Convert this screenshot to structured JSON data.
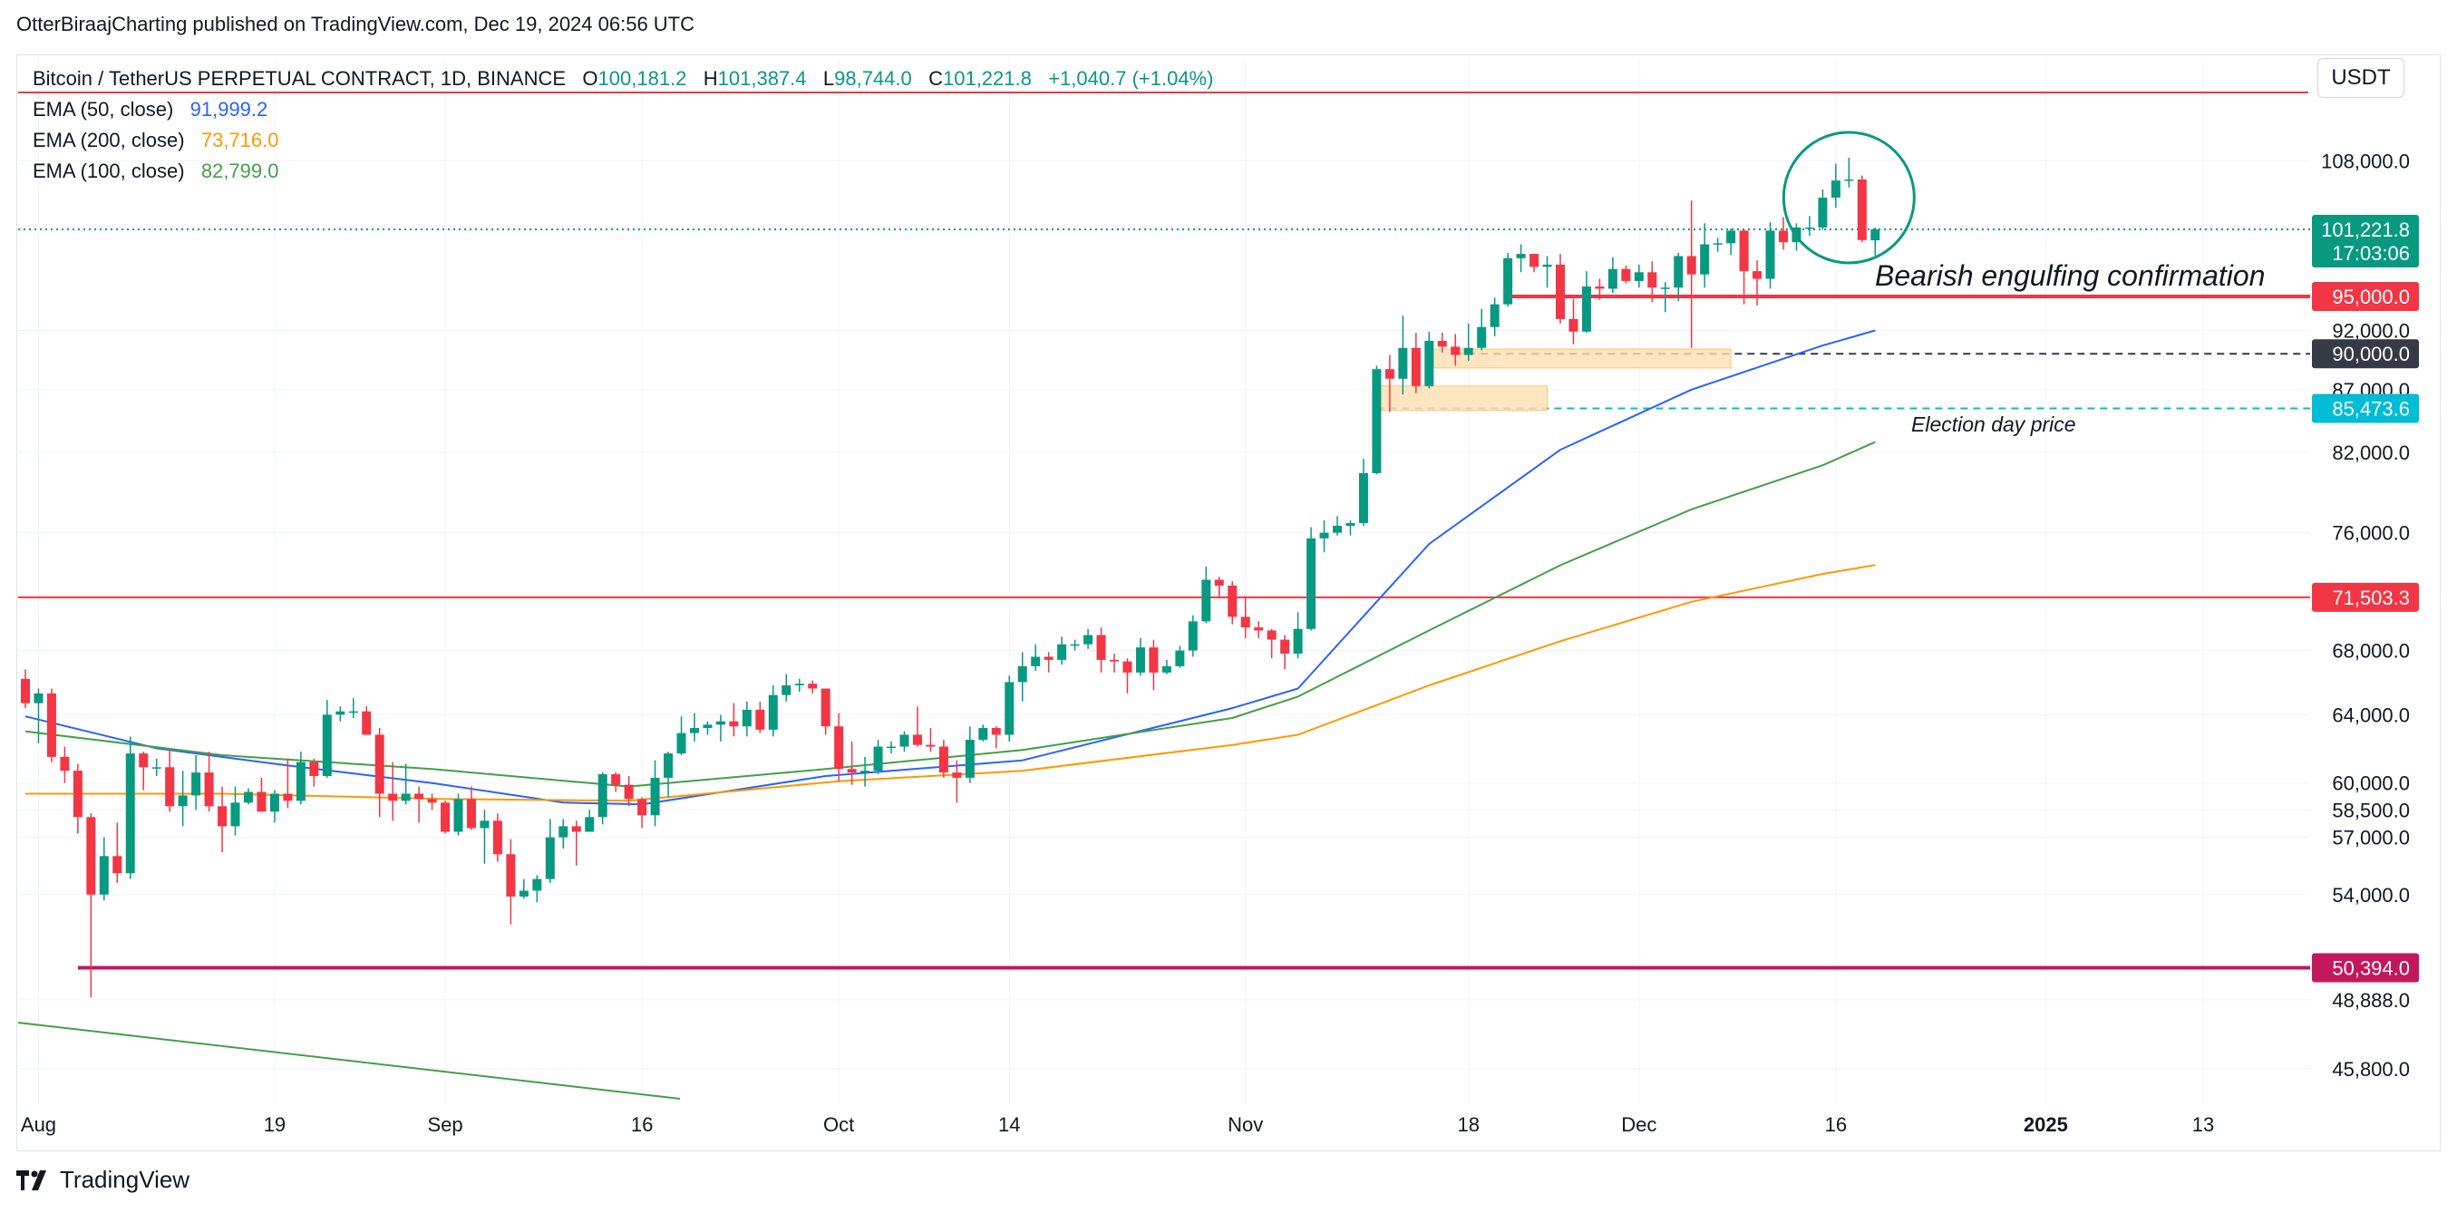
{
  "attribution": "OtterBiraajCharting published on TradingView.com, Dec 19, 2024 06:56 UTC",
  "legend": {
    "symbol": "Bitcoin / TetherUS PERPETUAL CONTRACT, 1D, BINANCE",
    "open_label": "O",
    "open": "100,181.2",
    "high_label": "H",
    "high": "101,387.4",
    "low_label": "L",
    "low": "98,744.0",
    "close_label": "C",
    "close": "101,221.8",
    "change": "+1,040.7 (+1.04%)",
    "ema50_label": "EMA (50, close)",
    "ema50_value": "91,999.2",
    "ema200_label": "EMA (200, close)",
    "ema200_value": "73,716.0",
    "ema100_label": "EMA (100, close)",
    "ema100_value": "82,799.0"
  },
  "currency": "USDT",
  "brand": "TradingView",
  "colors": {
    "up": "#089981",
    "down": "#f23645",
    "ema50": "#2962ff",
    "ema100": "#43a047",
    "ema200": "#ff9800",
    "grid": "#f0f3fa",
    "axis_text": "#131722"
  },
  "chart_data": {
    "type": "candlestick",
    "x_axis": {
      "ticks": [
        {
          "date": "2024-08-01",
          "label": "Aug"
        },
        {
          "date": "2024-08-19",
          "label": "19"
        },
        {
          "date": "2024-09-01",
          "label": "Sep"
        },
        {
          "date": "2024-09-16",
          "label": "16"
        },
        {
          "date": "2024-10-01",
          "label": "Oct"
        },
        {
          "date": "2024-10-14",
          "label": "14"
        },
        {
          "date": "2024-11-01",
          "label": "Nov"
        },
        {
          "date": "2024-11-18",
          "label": "18"
        },
        {
          "date": "2024-12-01",
          "label": "Dec"
        },
        {
          "date": "2024-12-16",
          "label": "16"
        },
        {
          "date": "2025-01-01",
          "label": "2025"
        },
        {
          "date": "2025-01-13",
          "label": "13"
        }
      ]
    },
    "y_axis": {
      "scale": "log",
      "range": [
        44300,
        119000
      ],
      "ticks": [
        45800,
        48888,
        54000,
        57000,
        58500,
        60000,
        64000,
        68000,
        76000,
        82000,
        87000,
        92000,
        108000
      ],
      "tick_labels": [
        "45,800.0",
        "48,888.0",
        "54,000.0",
        "57,000.0",
        "58,500.0",
        "60,000.0",
        "64,000.0",
        "68,000.0",
        "76,000.0",
        "82,000.0",
        "87,000.0",
        "92,000.0",
        "108,000.0"
      ]
    },
    "price_labels": [
      {
        "value": 101221.8,
        "label": "101,221.8",
        "sub": "17:03:06",
        "bg": "#089981"
      },
      {
        "value": 95000,
        "label": "95,000.0",
        "bg": "#f23645"
      },
      {
        "value": 90000,
        "label": "90,000.0",
        "bg": "#363a45"
      },
      {
        "value": 85473.6,
        "label": "85,473.6",
        "bg": "#00bcd4"
      },
      {
        "value": 71503.3,
        "label": "71,503.3",
        "bg": "#f23645"
      },
      {
        "value": 50394,
        "label": "50,394.0",
        "bg": "#c2185b"
      }
    ],
    "annotations": {
      "bearish_text": "Bearish engulfing confirmation",
      "election_text": "Election day price"
    },
    "candles": [
      [
        "2024-07-31",
        66200,
        66800,
        64400,
        64700
      ],
      [
        "2024-08-01",
        64700,
        65600,
        62300,
        65300
      ],
      [
        "2024-08-02",
        65300,
        65600,
        61200,
        61500
      ],
      [
        "2024-08-03",
        61500,
        62100,
        60000,
        60700
      ],
      [
        "2024-08-04",
        60700,
        61100,
        57200,
        58100
      ],
      [
        "2024-08-05",
        58100,
        58300,
        49000,
        54000
      ],
      [
        "2024-08-06",
        54000,
        57000,
        53700,
        56000
      ],
      [
        "2024-08-07",
        56000,
        57800,
        54600,
        55100
      ],
      [
        "2024-08-08",
        55100,
        62700,
        54800,
        61700
      ],
      [
        "2024-08-09",
        61700,
        61800,
        59600,
        60900
      ],
      [
        "2024-08-10",
        60900,
        61400,
        60400,
        60900
      ],
      [
        "2024-08-11",
        60900,
        61900,
        58400,
        58700
      ],
      [
        "2024-08-12",
        58700,
        60700,
        57600,
        59300
      ],
      [
        "2024-08-13",
        59300,
        61600,
        58500,
        60600
      ],
      [
        "2024-08-14",
        60600,
        61800,
        58400,
        58700
      ],
      [
        "2024-08-15",
        58700,
        59800,
        56200,
        57600
      ],
      [
        "2024-08-16",
        57600,
        59800,
        57100,
        58900
      ],
      [
        "2024-08-17",
        58900,
        59700,
        58800,
        59500
      ],
      [
        "2024-08-18",
        59500,
        60300,
        58400,
        58400
      ],
      [
        "2024-08-19",
        58400,
        59600,
        57800,
        59400
      ],
      [
        "2024-08-20",
        59400,
        61400,
        58600,
        59000
      ],
      [
        "2024-08-21",
        59000,
        61800,
        58800,
        61200
      ],
      [
        "2024-08-22",
        61200,
        61400,
        59800,
        60400
      ],
      [
        "2024-08-23",
        60400,
        64900,
        60300,
        64000
      ],
      [
        "2024-08-24",
        64000,
        64500,
        63600,
        64200
      ],
      [
        "2024-08-25",
        64200,
        65000,
        63800,
        64200
      ],
      [
        "2024-08-26",
        64200,
        64500,
        62800,
        62800
      ],
      [
        "2024-08-27",
        62800,
        63200,
        58100,
        59400
      ],
      [
        "2024-08-28",
        59400,
        61200,
        57900,
        59000
      ],
      [
        "2024-08-29",
        59000,
        61100,
        58800,
        59400
      ],
      [
        "2024-08-30",
        59400,
        59800,
        57800,
        59100
      ],
      [
        "2024-08-31",
        59100,
        59400,
        58500,
        58900
      ],
      [
        "2024-09-01",
        58900,
        59000,
        57200,
        57300
      ],
      [
        "2024-09-02",
        57300,
        59400,
        57100,
        59100
      ],
      [
        "2024-09-03",
        59100,
        59800,
        57400,
        57500
      ],
      [
        "2024-09-04",
        57500,
        58500,
        55600,
        57900
      ],
      [
        "2024-09-05",
        57900,
        58300,
        55700,
        56100
      ],
      [
        "2024-09-06",
        56100,
        56900,
        52500,
        53900
      ],
      [
        "2024-09-07",
        53900,
        54800,
        53800,
        54200
      ],
      [
        "2024-09-08",
        54200,
        55000,
        53600,
        54800
      ],
      [
        "2024-09-09",
        54800,
        58000,
        54600,
        57000
      ],
      [
        "2024-09-10",
        57000,
        58000,
        56400,
        57600
      ],
      [
        "2024-09-11",
        57600,
        57900,
        55500,
        57300
      ],
      [
        "2024-09-12",
        57300,
        58500,
        57300,
        58100
      ],
      [
        "2024-09-13",
        58100,
        60600,
        57700,
        60500
      ],
      [
        "2024-09-14",
        60500,
        60600,
        59500,
        59900
      ],
      [
        "2024-09-15",
        59900,
        60400,
        58700,
        59100
      ],
      [
        "2024-09-16",
        59100,
        59200,
        57500,
        58200
      ],
      [
        "2024-09-17",
        58200,
        61300,
        57600,
        60300
      ],
      [
        "2024-09-18",
        60300,
        61800,
        59200,
        61700
      ],
      [
        "2024-09-19",
        61700,
        63900,
        61600,
        62900
      ],
      [
        "2024-09-20",
        62900,
        64100,
        62400,
        63200
      ],
      [
        "2024-09-21",
        63200,
        63600,
        62800,
        63400
      ],
      [
        "2024-09-22",
        63400,
        64000,
        62400,
        63600
      ],
      [
        "2024-09-23",
        63600,
        64700,
        62700,
        63300
      ],
      [
        "2024-09-24",
        63300,
        64800,
        62700,
        64300
      ],
      [
        "2024-09-25",
        64300,
        64800,
        62900,
        63100
      ],
      [
        "2024-09-26",
        63100,
        65800,
        62700,
        65200
      ],
      [
        "2024-09-27",
        65200,
        66500,
        64800,
        65800
      ],
      [
        "2024-09-28",
        65800,
        66200,
        65400,
        65900
      ],
      [
        "2024-09-29",
        65900,
        66100,
        65300,
        65600
      ],
      [
        "2024-09-30",
        65600,
        65600,
        62800,
        63300
      ],
      [
        "2024-10-01",
        63300,
        64100,
        60100,
        60800
      ],
      [
        "2024-10-02",
        60800,
        62400,
        59900,
        60600
      ],
      [
        "2024-10-03",
        60600,
        61500,
        59800,
        60700
      ],
      [
        "2024-10-04",
        60700,
        62500,
        60500,
        62100
      ],
      [
        "2024-10-05",
        62100,
        62400,
        61700,
        62100
      ],
      [
        "2024-10-06",
        62100,
        63000,
        61800,
        62800
      ],
      [
        "2024-10-07",
        62800,
        64500,
        62100,
        62200
      ],
      [
        "2024-10-08",
        62200,
        63200,
        61800,
        62100
      ],
      [
        "2024-10-09",
        62100,
        62500,
        60300,
        60600
      ],
      [
        "2024-10-10",
        60600,
        61300,
        58900,
        60300
      ],
      [
        "2024-10-11",
        60300,
        63300,
        60000,
        62500
      ],
      [
        "2024-10-12",
        62500,
        63400,
        62400,
        63200
      ],
      [
        "2024-10-13",
        63200,
        63300,
        62000,
        62800
      ],
      [
        "2024-10-14",
        62800,
        66400,
        62400,
        66000
      ],
      [
        "2024-10-15",
        66000,
        67900,
        64800,
        67000
      ],
      [
        "2024-10-16",
        67000,
        68400,
        66700,
        67600
      ],
      [
        "2024-10-17",
        67600,
        67900,
        66600,
        67400
      ],
      [
        "2024-10-18",
        67400,
        68900,
        67100,
        68400
      ],
      [
        "2024-10-19",
        68400,
        68700,
        68000,
        68400
      ],
      [
        "2024-10-20",
        68400,
        69400,
        68100,
        69000
      ],
      [
        "2024-10-21",
        69000,
        69500,
        66600,
        67400
      ],
      [
        "2024-10-22",
        67400,
        67800,
        66600,
        67300
      ],
      [
        "2024-10-23",
        67300,
        67500,
        65300,
        66600
      ],
      [
        "2024-10-24",
        66600,
        68800,
        66400,
        68200
      ],
      [
        "2024-10-25",
        68200,
        68700,
        65500,
        66600
      ],
      [
        "2024-10-26",
        66600,
        67400,
        66500,
        67000
      ],
      [
        "2024-10-27",
        67000,
        68300,
        66900,
        68000
      ],
      [
        "2024-10-28",
        68000,
        70300,
        67600,
        69900
      ],
      [
        "2024-10-29",
        69900,
        73600,
        69800,
        72700
      ],
      [
        "2024-10-30",
        72700,
        72900,
        71500,
        72300
      ],
      [
        "2024-10-31",
        72300,
        72600,
        69700,
        70200
      ],
      [
        "2024-11-01",
        70200,
        71600,
        68800,
        69500
      ],
      [
        "2024-11-02",
        69500,
        69900,
        68800,
        69300
      ],
      [
        "2024-11-03",
        69300,
        69400,
        67500,
        68700
      ],
      [
        "2024-11-04",
        68700,
        69000,
        66800,
        67800
      ],
      [
        "2024-11-05",
        67800,
        70500,
        67500,
        69400
      ],
      [
        "2024-11-06",
        69400,
        76400,
        69300,
        75600
      ],
      [
        "2024-11-07",
        75600,
        76900,
        74600,
        76000
      ],
      [
        "2024-11-08",
        76000,
        77200,
        75800,
        76500
      ],
      [
        "2024-11-09",
        76500,
        76900,
        75800,
        76700
      ],
      [
        "2024-11-10",
        76700,
        81500,
        76500,
        80400
      ],
      [
        "2024-11-11",
        80400,
        89000,
        80300,
        88700
      ],
      [
        "2024-11-12",
        88700,
        89900,
        85200,
        87900
      ],
      [
        "2024-11-13",
        87900,
        93300,
        86600,
        90500
      ],
      [
        "2024-11-14",
        90500,
        91800,
        86700,
        87300
      ],
      [
        "2024-11-15",
        87300,
        91900,
        87100,
        91100
      ],
      [
        "2024-11-16",
        91100,
        91800,
        90100,
        90600
      ],
      [
        "2024-11-17",
        90600,
        91700,
        89000,
        89900
      ],
      [
        "2024-11-18",
        89900,
        92600,
        89400,
        90500
      ],
      [
        "2024-11-19",
        90500,
        93900,
        90300,
        92300
      ],
      [
        "2024-11-20",
        92300,
        94900,
        91500,
        94300
      ],
      [
        "2024-11-21",
        94300,
        99000,
        94100,
        98500
      ],
      [
        "2024-11-22",
        98500,
        99800,
        97200,
        98900
      ],
      [
        "2024-11-23",
        98900,
        98900,
        97200,
        97700
      ],
      [
        "2024-11-24",
        97700,
        98700,
        95800,
        97900
      ],
      [
        "2024-11-25",
        97900,
        98900,
        92600,
        93000
      ],
      [
        "2024-11-26",
        93000,
        94800,
        90800,
        91900
      ],
      [
        "2024-11-27",
        91900,
        97300,
        91800,
        95900
      ],
      [
        "2024-11-28",
        95900,
        96600,
        94700,
        95700
      ],
      [
        "2024-11-29",
        95700,
        98600,
        95300,
        97500
      ],
      [
        "2024-11-30",
        97500,
        97800,
        96200,
        96400
      ],
      [
        "2024-12-01",
        96400,
        97900,
        95800,
        97200
      ],
      [
        "2024-12-02",
        97200,
        98200,
        94500,
        95800
      ],
      [
        "2024-12-03",
        95800,
        96300,
        93600,
        95800
      ],
      [
        "2024-12-04",
        95800,
        99000,
        94600,
        98700
      ],
      [
        "2024-12-05",
        98700,
        104000,
        90500,
        97000
      ],
      [
        "2024-12-06",
        97000,
        101800,
        95800,
        99800
      ],
      [
        "2024-12-07",
        99800,
        100400,
        99100,
        99900
      ],
      [
        "2024-12-08",
        99900,
        101300,
        98800,
        101100
      ],
      [
        "2024-12-09",
        101100,
        101200,
        94300,
        97300
      ],
      [
        "2024-12-10",
        97300,
        98300,
        94200,
        96600
      ],
      [
        "2024-12-11",
        96600,
        101900,
        95700,
        101100
      ],
      [
        "2024-12-12",
        101100,
        102400,
        99300,
        100000
      ],
      [
        "2024-12-13",
        100000,
        101800,
        99200,
        101400
      ],
      [
        "2024-12-14",
        101400,
        102500,
        100600,
        101400
      ],
      [
        "2024-12-15",
        101400,
        105100,
        101200,
        104300
      ],
      [
        "2024-12-16",
        104300,
        107700,
        103300,
        106000
      ],
      [
        "2024-12-17",
        106000,
        108300,
        105300,
        106100
      ],
      [
        "2024-12-18",
        106100,
        106500,
        100000,
        100200
      ],
      [
        "2024-12-19",
        100181.2,
        101387.4,
        98744.0,
        101221.8
      ]
    ],
    "ema": {
      "ema50": [
        [
          "2024-07-31",
          63900
        ],
        [
          "2024-08-10",
          62000
        ],
        [
          "2024-08-20",
          61000
        ],
        [
          "2024-08-31",
          60000
        ],
        [
          "2024-09-10",
          58900
        ],
        [
          "2024-09-16",
          58800
        ],
        [
          "2024-09-30",
          60400
        ],
        [
          "2024-10-15",
          61300
        ],
        [
          "2024-10-31",
          64400
        ],
        [
          "2024-11-05",
          65600
        ],
        [
          "2024-11-15",
          75200
        ],
        [
          "2024-11-25",
          82200
        ],
        [
          "2024-12-05",
          87000
        ],
        [
          "2024-12-15",
          90700
        ],
        [
          "2024-12-19",
          91999.2
        ]
      ],
      "ema100": [
        [
          "2024-07-31",
          63000
        ],
        [
          "2024-08-15",
          61600
        ],
        [
          "2024-08-31",
          60800
        ],
        [
          "2024-09-15",
          59800
        ],
        [
          "2024-09-30",
          60800
        ],
        [
          "2024-10-15",
          61900
        ],
        [
          "2024-10-31",
          63800
        ],
        [
          "2024-11-05",
          65100
        ],
        [
          "2024-11-15",
          69300
        ],
        [
          "2024-11-25",
          73700
        ],
        [
          "2024-12-05",
          77700
        ],
        [
          "2024-12-15",
          81000
        ],
        [
          "2024-12-19",
          82799
        ]
      ],
      "ema200": [
        [
          "2024-07-31",
          59400
        ],
        [
          "2024-08-15",
          59400
        ],
        [
          "2024-09-01",
          59100
        ],
        [
          "2024-09-15",
          59000
        ],
        [
          "2024-10-01",
          60100
        ],
        [
          "2024-10-15",
          60700
        ],
        [
          "2024-10-31",
          62200
        ],
        [
          "2024-11-05",
          62800
        ],
        [
          "2024-11-15",
          65800
        ],
        [
          "2024-11-25",
          68600
        ],
        [
          "2024-12-05",
          71200
        ],
        [
          "2024-12-15",
          73100
        ],
        [
          "2024-12-19",
          73716
        ]
      ]
    }
  }
}
